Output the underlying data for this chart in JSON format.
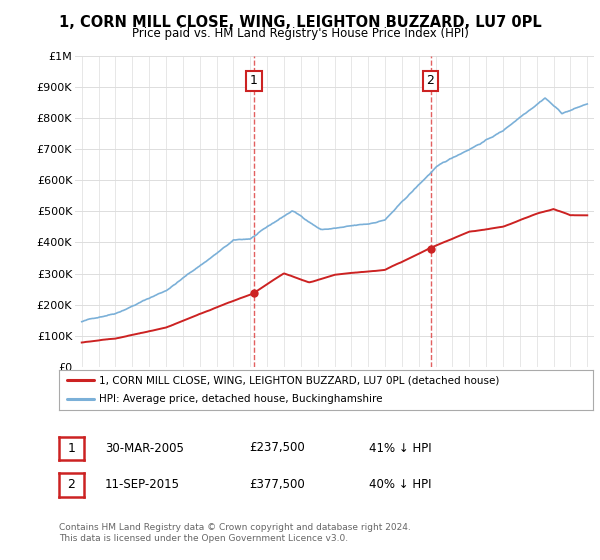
{
  "title": "1, CORN MILL CLOSE, WING, LEIGHTON BUZZARD, LU7 0PL",
  "subtitle": "Price paid vs. HM Land Registry's House Price Index (HPI)",
  "ylim": [
    0,
    1000000
  ],
  "yticks": [
    0,
    100000,
    200000,
    300000,
    400000,
    500000,
    600000,
    700000,
    800000,
    900000,
    1000000
  ],
  "ytick_labels": [
    "£0",
    "£100K",
    "£200K",
    "£300K",
    "£400K",
    "£500K",
    "£600K",
    "£700K",
    "£800K",
    "£900K",
    "£1M"
  ],
  "hpi_color": "#7bb0d8",
  "price_color": "#cc2222",
  "purchase_1": {
    "date_num": 2005.22,
    "price": 237500
  },
  "purchase_2": {
    "date_num": 2015.7,
    "price": 377500
  },
  "vline_color": "#dd4444",
  "legend_label_price": "1, CORN MILL CLOSE, WING, LEIGHTON BUZZARD, LU7 0PL (detached house)",
  "legend_label_hpi": "HPI: Average price, detached house, Buckinghamshire",
  "footnote_1": "Contains HM Land Registry data © Crown copyright and database right 2024.",
  "footnote_2": "This data is licensed under the Open Government Licence v3.0.",
  "table_rows": [
    {
      "num": "1",
      "date": "30-MAR-2005",
      "price": "£237,500",
      "rel": "41% ↓ HPI"
    },
    {
      "num": "2",
      "date": "11-SEP-2015",
      "price": "£377,500",
      "rel": "40% ↓ HPI"
    }
  ],
  "background_color": "#ffffff",
  "grid_color": "#dddddd"
}
